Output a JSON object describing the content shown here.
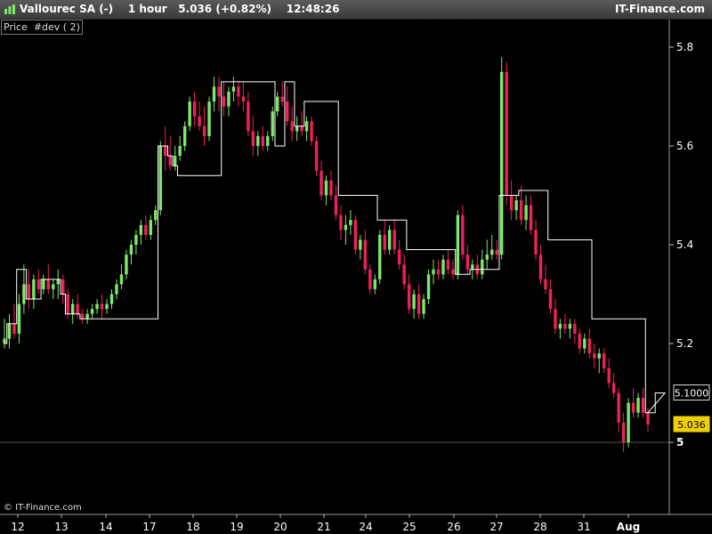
{
  "header": {
    "instrument": "Vallourec SA (-)",
    "timeframe": "1 hour",
    "last": "5.036",
    "change": "(+0.82%)",
    "time": "12:48:26",
    "brand": "IT-Finance.com"
  },
  "indicator_label": "Price  #dev ( 2)",
  "watermark": "© IT-Finance.com",
  "colors": {
    "background": "#000000",
    "up_candle": "#7ee86a",
    "down_candle": "#f0215a",
    "line": "#ffffff",
    "grid": "#2a2a2a",
    "price_tag": "#f0d000"
  },
  "chart_data": {
    "type": "candlestick",
    "ylim": [
      4.8,
      5.85
    ],
    "y_ticks": [
      {
        "label": "5.8",
        "value": 5.8
      },
      {
        "label": "5.6",
        "value": 5.6
      },
      {
        "label": "5.4",
        "value": 5.4
      },
      {
        "label": "5.2",
        "value": 5.2
      },
      {
        "label": "5",
        "value": 5.0
      }
    ],
    "x_ticks": [
      "12",
      "13",
      "14",
      "17",
      "18",
      "19",
      "20",
      "21",
      "24",
      "25",
      "26",
      "27",
      "28",
      "31",
      "Aug"
    ],
    "price_labels": [
      {
        "label": "5.1000",
        "value": 5.1,
        "style": "outline"
      },
      {
        "label": "5.036",
        "value": 5.036,
        "style": "filled"
      }
    ],
    "reference_line": 5.0,
    "candles": [
      [
        5.2,
        5.25,
        5.19,
        5.21
      ],
      [
        5.21,
        5.26,
        5.19,
        5.24
      ],
      [
        5.24,
        5.28,
        5.21,
        5.22
      ],
      [
        5.22,
        5.3,
        5.2,
        5.28
      ],
      [
        5.28,
        5.36,
        5.26,
        5.32
      ],
      [
        5.32,
        5.35,
        5.27,
        5.29
      ],
      [
        5.29,
        5.34,
        5.27,
        5.33
      ],
      [
        5.33,
        5.35,
        5.3,
        5.31
      ],
      [
        5.31,
        5.34,
        5.3,
        5.33
      ],
      [
        5.33,
        5.36,
        5.3,
        5.31
      ],
      [
        5.31,
        5.33,
        5.29,
        5.32
      ],
      [
        5.32,
        5.35,
        5.29,
        5.33
      ],
      [
        5.33,
        5.34,
        5.28,
        5.3
      ],
      [
        5.3,
        5.31,
        5.25,
        5.26
      ],
      [
        5.26,
        5.29,
        5.24,
        5.28
      ],
      [
        5.28,
        5.3,
        5.25,
        5.26
      ],
      [
        5.26,
        5.27,
        5.24,
        5.25
      ],
      [
        5.25,
        5.27,
        5.24,
        5.26
      ],
      [
        5.26,
        5.28,
        5.25,
        5.27
      ],
      [
        5.27,
        5.29,
        5.26,
        5.28
      ],
      [
        5.28,
        5.3,
        5.25,
        5.27
      ],
      [
        5.27,
        5.29,
        5.26,
        5.28
      ],
      [
        5.28,
        5.31,
        5.27,
        5.3
      ],
      [
        5.3,
        5.33,
        5.29,
        5.32
      ],
      [
        5.32,
        5.36,
        5.31,
        5.34
      ],
      [
        5.34,
        5.39,
        5.33,
        5.38
      ],
      [
        5.38,
        5.41,
        5.36,
        5.4
      ],
      [
        5.4,
        5.43,
        5.38,
        5.42
      ],
      [
        5.42,
        5.45,
        5.4,
        5.44
      ],
      [
        5.44,
        5.46,
        5.41,
        5.42
      ],
      [
        5.42,
        5.46,
        5.41,
        5.45
      ],
      [
        5.45,
        5.48,
        5.44,
        5.47
      ],
      [
        5.47,
        5.61,
        5.46,
        5.6
      ],
      [
        5.6,
        5.64,
        5.55,
        5.58
      ],
      [
        5.58,
        5.62,
        5.55,
        5.56
      ],
      [
        5.56,
        5.6,
        5.55,
        5.58
      ],
      [
        5.58,
        5.62,
        5.57,
        5.6
      ],
      [
        5.6,
        5.65,
        5.59,
        5.64
      ],
      [
        5.64,
        5.7,
        5.63,
        5.69
      ],
      [
        5.69,
        5.71,
        5.64,
        5.66
      ],
      [
        5.66,
        5.69,
        5.63,
        5.64
      ],
      [
        5.64,
        5.68,
        5.6,
        5.62
      ],
      [
        5.62,
        5.7,
        5.61,
        5.69
      ],
      [
        5.69,
        5.74,
        5.67,
        5.72
      ],
      [
        5.72,
        5.74,
        5.67,
        5.7
      ],
      [
        5.7,
        5.73,
        5.66,
        5.68
      ],
      [
        5.68,
        5.72,
        5.66,
        5.71
      ],
      [
        5.71,
        5.74,
        5.69,
        5.72
      ],
      [
        5.72,
        5.73,
        5.68,
        5.7
      ],
      [
        5.7,
        5.73,
        5.67,
        5.69
      ],
      [
        5.69,
        5.71,
        5.62,
        5.63
      ],
      [
        5.63,
        5.66,
        5.58,
        5.6
      ],
      [
        5.6,
        5.63,
        5.58,
        5.62
      ],
      [
        5.62,
        5.64,
        5.59,
        5.6
      ],
      [
        5.6,
        5.63,
        5.59,
        5.62
      ],
      [
        5.62,
        5.68,
        5.61,
        5.67
      ],
      [
        5.67,
        5.71,
        5.66,
        5.7
      ],
      [
        5.7,
        5.73,
        5.68,
        5.69
      ],
      [
        5.69,
        5.72,
        5.64,
        5.65
      ],
      [
        5.65,
        5.68,
        5.61,
        5.63
      ],
      [
        5.63,
        5.66,
        5.61,
        5.64
      ],
      [
        5.64,
        5.67,
        5.62,
        5.63
      ],
      [
        5.63,
        5.66,
        5.61,
        5.65
      ],
      [
        5.65,
        5.66,
        5.6,
        5.61
      ],
      [
        5.61,
        5.62,
        5.54,
        5.55
      ],
      [
        5.55,
        5.57,
        5.49,
        5.5
      ],
      [
        5.5,
        5.54,
        5.48,
        5.53
      ],
      [
        5.53,
        5.55,
        5.49,
        5.5
      ],
      [
        5.5,
        5.52,
        5.45,
        5.46
      ],
      [
        5.46,
        5.48,
        5.41,
        5.43
      ],
      [
        5.43,
        5.46,
        5.4,
        5.44
      ],
      [
        5.44,
        5.47,
        5.42,
        5.45
      ],
      [
        5.45,
        5.46,
        5.38,
        5.39
      ],
      [
        5.39,
        5.42,
        5.37,
        5.41
      ],
      [
        5.41,
        5.43,
        5.34,
        5.35
      ],
      [
        5.35,
        5.36,
        5.3,
        5.31
      ],
      [
        5.31,
        5.34,
        5.3,
        5.33
      ],
      [
        5.33,
        5.43,
        5.32,
        5.42
      ],
      [
        5.42,
        5.45,
        5.38,
        5.39
      ],
      [
        5.39,
        5.44,
        5.38,
        5.43
      ],
      [
        5.43,
        5.45,
        5.38,
        5.39
      ],
      [
        5.39,
        5.41,
        5.35,
        5.36
      ],
      [
        5.36,
        5.38,
        5.31,
        5.32
      ],
      [
        5.32,
        5.34,
        5.26,
        5.27
      ],
      [
        5.27,
        5.31,
        5.25,
        5.3
      ],
      [
        5.3,
        5.32,
        5.25,
        5.26
      ],
      [
        5.26,
        5.3,
        5.25,
        5.29
      ],
      [
        5.29,
        5.35,
        5.28,
        5.34
      ],
      [
        5.34,
        5.37,
        5.32,
        5.35
      ],
      [
        5.35,
        5.37,
        5.33,
        5.34
      ],
      [
        5.34,
        5.38,
        5.33,
        5.37
      ],
      [
        5.37,
        5.39,
        5.34,
        5.35
      ],
      [
        5.35,
        5.37,
        5.33,
        5.34
      ],
      [
        5.34,
        5.47,
        5.33,
        5.46
      ],
      [
        5.46,
        5.48,
        5.37,
        5.38
      ],
      [
        5.38,
        5.4,
        5.34,
        5.35
      ],
      [
        5.35,
        5.37,
        5.33,
        5.36
      ],
      [
        5.36,
        5.38,
        5.33,
        5.34
      ],
      [
        5.34,
        5.39,
        5.33,
        5.37
      ],
      [
        5.37,
        5.41,
        5.35,
        5.38
      ],
      [
        5.38,
        5.42,
        5.37,
        5.39
      ],
      [
        5.39,
        5.41,
        5.37,
        5.38
      ],
      [
        5.38,
        5.78,
        5.37,
        5.75
      ],
      [
        5.75,
        5.77,
        5.48,
        5.5
      ],
      [
        5.5,
        5.53,
        5.45,
        5.47
      ],
      [
        5.47,
        5.5,
        5.45,
        5.49
      ],
      [
        5.49,
        5.52,
        5.44,
        5.45
      ],
      [
        5.45,
        5.5,
        5.43,
        5.48
      ],
      [
        5.48,
        5.5,
        5.42,
        5.43
      ],
      [
        5.43,
        5.45,
        5.37,
        5.38
      ],
      [
        5.38,
        5.4,
        5.32,
        5.33
      ],
      [
        5.33,
        5.36,
        5.3,
        5.31
      ],
      [
        5.31,
        5.33,
        5.26,
        5.27
      ],
      [
        5.27,
        5.29,
        5.22,
        5.23
      ],
      [
        5.23,
        5.25,
        5.21,
        5.24
      ],
      [
        5.24,
        5.26,
        5.22,
        5.23
      ],
      [
        5.23,
        5.25,
        5.21,
        5.24
      ],
      [
        5.24,
        5.25,
        5.2,
        5.22
      ],
      [
        5.22,
        5.23,
        5.18,
        5.19
      ],
      [
        5.19,
        5.22,
        5.18,
        5.21
      ],
      [
        5.21,
        5.23,
        5.17,
        5.18
      ],
      [
        5.18,
        5.2,
        5.15,
        5.17
      ],
      [
        5.17,
        5.19,
        5.14,
        5.18
      ],
      [
        5.18,
        5.19,
        5.14,
        5.15
      ],
      [
        5.15,
        5.17,
        5.11,
        5.12
      ],
      [
        5.12,
        5.14,
        5.09,
        5.1
      ],
      [
        5.1,
        5.11,
        5.02,
        5.04
      ],
      [
        5.04,
        5.06,
        4.98,
        5.0
      ],
      [
        5.0,
        5.09,
        4.99,
        5.08
      ],
      [
        5.08,
        5.11,
        5.05,
        5.06
      ],
      [
        5.06,
        5.1,
        5.05,
        5.09
      ],
      [
        5.09,
        5.11,
        5.05,
        5.06
      ],
      [
        5.06,
        5.07,
        5.02,
        5.036
      ]
    ],
    "deviation_line": [
      5.2,
      5.24,
      5.24,
      5.35,
      5.35,
      5.29,
      5.29,
      5.29,
      5.33,
      5.33,
      5.33,
      5.33,
      5.3,
      5.26,
      5.26,
      5.26,
      5.25,
      5.25,
      5.25,
      5.25,
      5.25,
      5.25,
      5.25,
      5.25,
      5.25,
      5.25,
      5.25,
      5.25,
      5.25,
      5.25,
      5.25,
      5.25,
      5.6,
      5.6,
      5.58,
      5.56,
      5.54,
      5.54,
      5.54,
      5.54,
      5.54,
      5.54,
      5.54,
      5.54,
      5.54,
      5.73,
      5.73,
      5.73,
      5.73,
      5.73,
      5.73,
      5.73,
      5.73,
      5.73,
      5.73,
      5.73,
      5.6,
      5.6,
      5.73,
      5.73,
      5.64,
      5.64,
      5.69,
      5.69,
      5.69,
      5.69,
      5.69,
      5.69,
      5.69,
      5.5,
      5.5,
      5.5,
      5.5,
      5.5,
      5.5,
      5.5,
      5.5,
      5.45,
      5.45,
      5.45,
      5.45,
      5.45,
      5.45,
      5.39,
      5.39,
      5.39,
      5.39,
      5.39,
      5.39,
      5.39,
      5.39,
      5.39,
      5.39,
      5.34,
      5.34,
      5.34,
      5.35,
      5.35,
      5.35,
      5.35,
      5.35,
      5.35,
      5.5,
      5.5,
      5.5,
      5.5,
      5.51,
      5.51,
      5.51,
      5.51,
      5.51,
      5.51,
      5.41,
      5.41,
      5.41,
      5.41,
      5.41,
      5.41,
      5.41,
      5.41,
      5.41,
      5.25,
      5.25,
      5.25,
      5.25,
      5.25,
      5.25,
      5.25,
      5.25,
      5.25,
      5.25,
      5.25,
      5.06,
      5.06,
      5.1,
      5.1,
      5.1
    ]
  }
}
